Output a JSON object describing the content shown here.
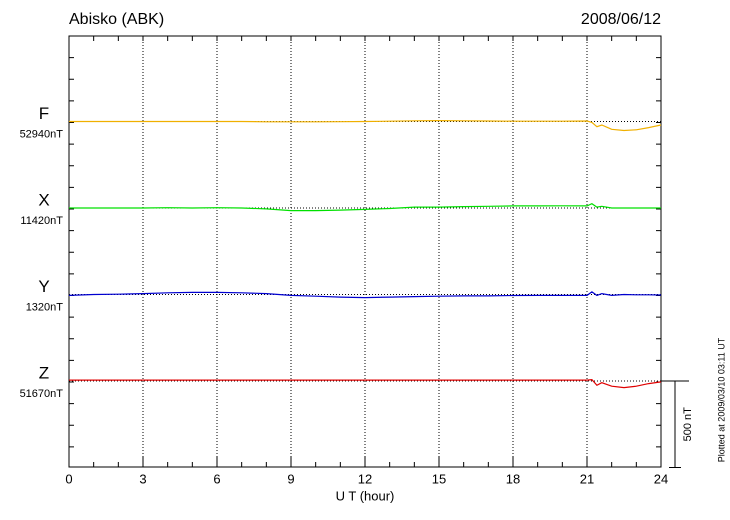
{
  "chart_data": {
    "type": "magnetogram",
    "title": "Abisko (ABK)",
    "date": "2008/06/12",
    "x_label": "U T (hour)",
    "note": "Plotted at 2009/03/10 03:11 UT",
    "xlim": [
      0,
      24
    ],
    "xticks": [
      0,
      3,
      6,
      9,
      12,
      15,
      18,
      21,
      24
    ],
    "grid": true,
    "scale": {
      "value": 500,
      "label": "500 nT"
    },
    "x": [
      0,
      1,
      2,
      3,
      4,
      5,
      6,
      7,
      8,
      9,
      10,
      11,
      12,
      13,
      14,
      15,
      16,
      17,
      18,
      19,
      20,
      21,
      21.2,
      21.4,
      21.6,
      22,
      22.5,
      23,
      23.5,
      24
    ],
    "series": [
      {
        "name": "F",
        "baseline_label": "52940nT",
        "color": "#f0b000",
        "values": [
          0,
          0,
          0,
          0,
          0,
          0,
          0,
          0,
          -2,
          -2,
          -2,
          -1,
          0,
          2,
          4,
          5,
          4,
          3,
          2,
          2,
          2,
          3,
          -5,
          -30,
          -20,
          -45,
          -52,
          -48,
          -35,
          -20
        ]
      },
      {
        "name": "X",
        "baseline_label": "11420nT",
        "color": "#00e000",
        "values": [
          0,
          0,
          0,
          0,
          2,
          0,
          2,
          0,
          -5,
          -15,
          -15,
          -12,
          -8,
          -3,
          5,
          5,
          8,
          10,
          12,
          12,
          13,
          12,
          25,
          5,
          10,
          0,
          0,
          0,
          0,
          0
        ]
      },
      {
        "name": "Y",
        "baseline_label": "1320nT",
        "color": "#0000d0",
        "values": [
          -5,
          0,
          2,
          5,
          10,
          12,
          12,
          10,
          5,
          -5,
          -10,
          -15,
          -18,
          -15,
          -12,
          -10,
          -8,
          -8,
          -6,
          -5,
          -5,
          -5,
          15,
          -5,
          5,
          -5,
          0,
          -2,
          -2,
          -3
        ]
      },
      {
        "name": "Z",
        "baseline_label": "51670nT",
        "color": "#e00000",
        "values": [
          5,
          5,
          5,
          5,
          5,
          5,
          5,
          5,
          5,
          5,
          5,
          5,
          5,
          5,
          5,
          5,
          5,
          5,
          5,
          5,
          5,
          5,
          8,
          -25,
          -10,
          -30,
          -38,
          -30,
          -15,
          -5
        ]
      }
    ]
  }
}
